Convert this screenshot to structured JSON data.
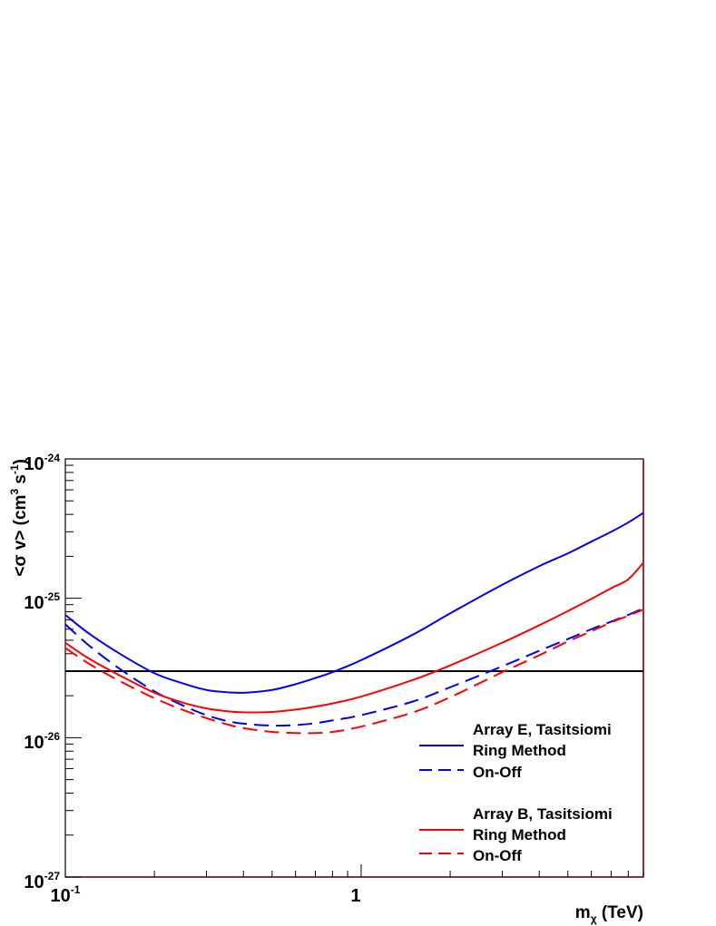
{
  "chart_data": {
    "type": "line",
    "xlabel_main": "m",
    "xlabel_sub": "χ",
    "xlabel_unit": "(TeV)",
    "ylabel_prefix": "<σ v> (cm",
    "ylabel_sup1": "3",
    "ylabel_mid": " s",
    "ylabel_sup2": "-1",
    "ylabel_suffix": ")",
    "x_scale": "log",
    "y_scale": "log",
    "xlim": [
      0.1,
      9.0
    ],
    "ylim": [
      1e-27,
      1e-24
    ],
    "x_tick_labels": [
      {
        "value": 0.1,
        "base": "10",
        "exp": "-1"
      },
      {
        "value": 1,
        "base": "1",
        "exp": ""
      }
    ],
    "y_tick_labels": [
      {
        "value": 1e-27,
        "base": "10",
        "exp": "-27"
      },
      {
        "value": 1e-26,
        "base": "10",
        "exp": "-26"
      },
      {
        "value": 1e-25,
        "base": "10",
        "exp": "-25"
      },
      {
        "value": 1e-24,
        "base": "10",
        "exp": "-24"
      }
    ],
    "reference_line": {
      "y": 3e-26,
      "color": "#000000"
    },
    "series": [
      {
        "name": "Ring Method",
        "group": "Array E, Tasitsiomi",
        "color": "#0000ff",
        "dash": "solid",
        "x": [
          0.1,
          0.12,
          0.15,
          0.2,
          0.25,
          0.3,
          0.35,
          0.4,
          0.5,
          0.6,
          0.7,
          0.8,
          1.0,
          1.5,
          2.0,
          3.0,
          4.0,
          5.0,
          6.0,
          7.0,
          8.0,
          9.0
        ],
        "y": [
          7.6e-26,
          5.6e-26,
          4.1e-26,
          2.9e-26,
          2.45e-26,
          2.2e-26,
          2.12e-26,
          2.1e-26,
          2.2e-26,
          2.42e-26,
          2.68e-26,
          2.95e-26,
          3.6e-26,
          5.5e-26,
          7.8e-26,
          1.25e-25,
          1.7e-25,
          2.1e-25,
          2.55e-25,
          3e-25,
          3.5e-25,
          4.1e-25
        ]
      },
      {
        "name": "On-Off",
        "group": "Array E, Tasitsiomi",
        "color": "#0000ff",
        "dash": "dashed",
        "x": [
          0.1,
          0.12,
          0.15,
          0.2,
          0.25,
          0.3,
          0.35,
          0.4,
          0.5,
          0.6,
          0.7,
          0.8,
          1.0,
          1.5,
          2.0,
          3.0,
          4.0,
          5.0,
          6.0,
          7.0,
          8.0,
          9.0
        ],
        "y": [
          6.5e-26,
          4.6e-26,
          3.2e-26,
          2.15e-26,
          1.7e-26,
          1.45e-26,
          1.32e-26,
          1.26e-26,
          1.22e-26,
          1.23e-26,
          1.27e-26,
          1.33e-26,
          1.45e-26,
          1.82e-26,
          2.3e-26,
          3.25e-26,
          4.2e-26,
          5.1e-26,
          6e-26,
          6.8e-26,
          7.6e-26,
          8.5e-26
        ]
      },
      {
        "name": "Ring Method",
        "group": "Array B, Tasitsiomi",
        "color": "#ff0000",
        "dash": "solid",
        "x": [
          0.1,
          0.12,
          0.15,
          0.2,
          0.25,
          0.3,
          0.35,
          0.4,
          0.5,
          0.6,
          0.7,
          0.8,
          1.0,
          1.5,
          2.0,
          3.0,
          4.0,
          5.0,
          6.0,
          7.0,
          8.0,
          9.0
        ],
        "y": [
          4.8e-26,
          3.7e-26,
          2.85e-26,
          2.1e-26,
          1.78e-26,
          1.62e-26,
          1.55e-26,
          1.52e-26,
          1.53e-26,
          1.59e-26,
          1.67e-26,
          1.76e-26,
          1.97e-26,
          2.6e-26,
          3.3e-26,
          4.8e-26,
          6.4e-26,
          8.1e-26,
          9.9e-26,
          1.18e-25,
          1.37e-25,
          1.8e-25
        ]
      },
      {
        "name": "On-Off",
        "group": "Array B, Tasitsiomi",
        "color": "#ff0000",
        "dash": "dashed",
        "x": [
          0.1,
          0.12,
          0.15,
          0.2,
          0.25,
          0.3,
          0.35,
          0.4,
          0.5,
          0.6,
          0.7,
          0.8,
          1.0,
          1.5,
          2.0,
          3.0,
          4.0,
          5.0,
          6.0,
          7.0,
          8.0,
          9.0
        ],
        "y": [
          4.4e-26,
          3.4e-26,
          2.6e-26,
          1.92e-26,
          1.58e-26,
          1.38e-26,
          1.25e-26,
          1.17e-26,
          1.1e-26,
          1.08e-26,
          1.08e-26,
          1.1e-26,
          1.2e-26,
          1.52e-26,
          1.95e-26,
          2.95e-26,
          3.9e-26,
          4.9e-26,
          5.8e-26,
          6.7e-26,
          7.5e-26,
          8.3e-26
        ]
      }
    ],
    "legend": {
      "placement": "lower-right",
      "group1_title": "Array E, Tasitsiomi",
      "group1_entries": [
        "Ring Method",
        "On-Off"
      ],
      "group2_title": "Array B, Tasitsiomi",
      "group2_entries": [
        "Ring Method",
        "On-Off"
      ]
    }
  }
}
